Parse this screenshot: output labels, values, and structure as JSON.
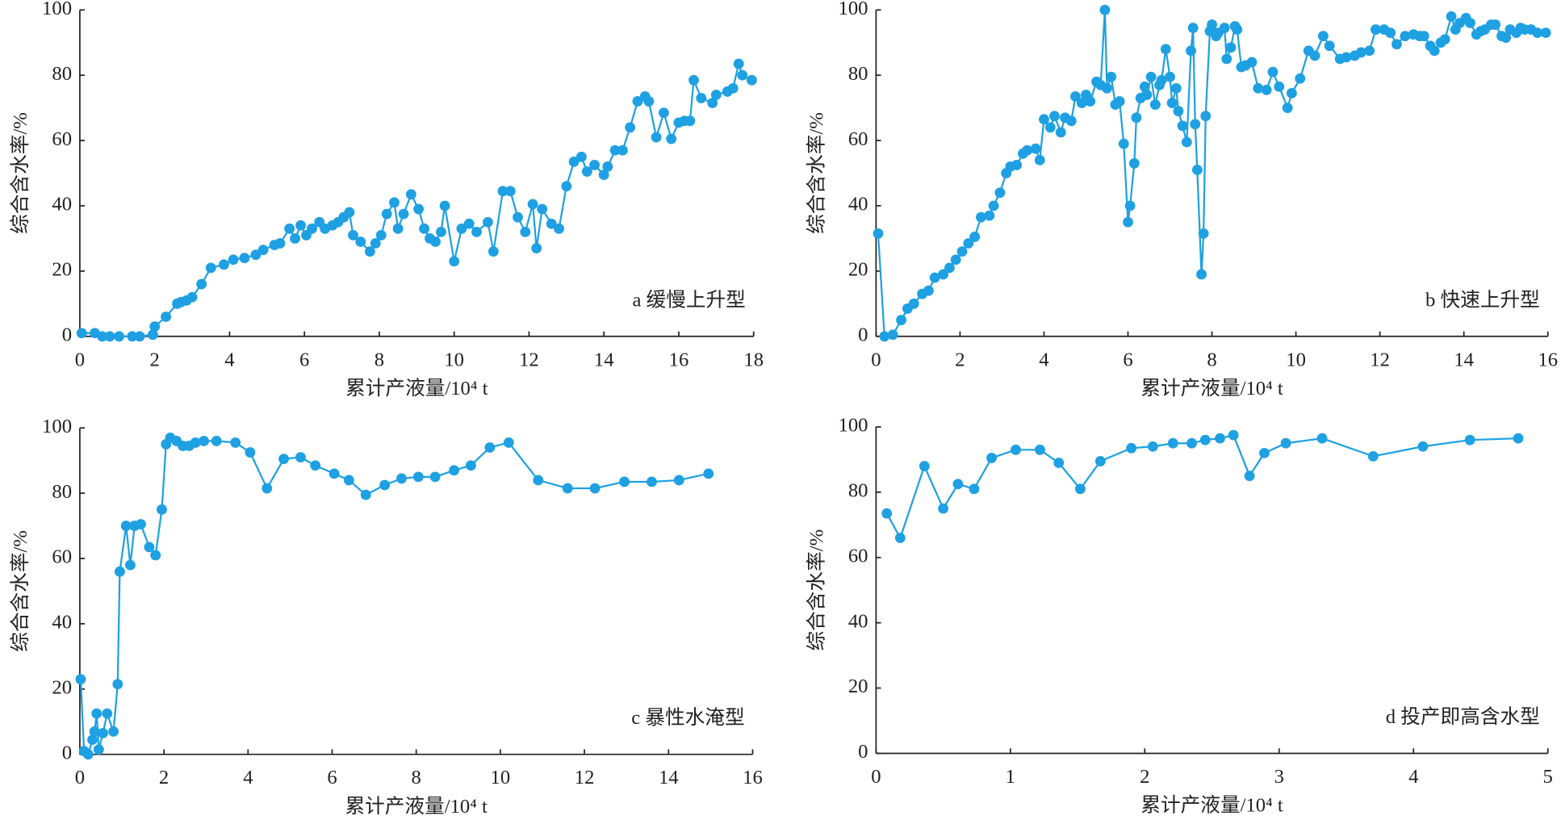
{
  "chart_data": [
    {
      "type": "line",
      "annotation": "a 缓慢上升型",
      "xlabel": "累计产液量/10⁴ t",
      "ylabel": "综合含水率/%",
      "xlim": [
        0,
        18
      ],
      "ylim": [
        0,
        100
      ],
      "xticks": [
        0,
        2,
        4,
        6,
        8,
        10,
        12,
        14,
        16,
        18
      ],
      "yticks": [
        0,
        20,
        40,
        60,
        80,
        100
      ],
      "color": "#1ea0e2",
      "x": [
        0.05,
        0.4,
        0.6,
        0.8,
        1.05,
        1.4,
        1.6,
        1.95,
        2.0,
        2.3,
        2.6,
        2.7,
        2.85,
        3.0,
        3.25,
        3.5,
        3.85,
        4.1,
        4.4,
        4.7,
        4.9,
        5.2,
        5.35,
        5.6,
        5.75,
        5.9,
        6.05,
        6.2,
        6.4,
        6.55,
        6.75,
        6.9,
        7.05,
        7.2,
        7.3,
        7.5,
        7.75,
        7.9,
        8.05,
        8.2,
        8.4,
        8.5,
        8.65,
        8.85,
        9.05,
        9.2,
        9.35,
        9.5,
        9.65,
        9.75,
        10.0,
        10.2,
        10.4,
        10.6,
        10.9,
        11.05,
        11.3,
        11.5,
        11.7,
        11.9,
        12.1,
        12.2,
        12.35,
        12.6,
        12.8,
        13.0,
        13.2,
        13.4,
        13.55,
        13.75,
        14.0,
        14.1,
        14.3,
        14.5,
        14.7,
        14.9,
        15.1,
        15.2,
        15.4,
        15.6,
        15.8,
        16.0,
        16.15,
        16.3,
        16.4,
        16.6,
        16.9,
        17.0,
        17.3,
        17.45,
        17.6,
        17.7,
        17.95
      ],
      "values": [
        1,
        1,
        0,
        0,
        0,
        0,
        0,
        0.5,
        3,
        6,
        10,
        10.5,
        11,
        12,
        16,
        21,
        22,
        23.5,
        24,
        25,
        26.5,
        28,
        28.5,
        33,
        30,
        34,
        31,
        33,
        35,
        33,
        34,
        35,
        36.5,
        38,
        31,
        29,
        26,
        28.5,
        31,
        37.5,
        41,
        33,
        37.5,
        43.5,
        39,
        33,
        30,
        29,
        32,
        40,
        23,
        33,
        34.5,
        32,
        35,
        26,
        44.5,
        44.5,
        36.5,
        32,
        40.5,
        27,
        39,
        34.5,
        33,
        46,
        53.5,
        55,
        50.5,
        52.5,
        49.5,
        52,
        57,
        57,
        64,
        72,
        73.5,
        72,
        61,
        68.5,
        60.5,
        65.5,
        66,
        66,
        78.5,
        73,
        71.5,
        74,
        75,
        76,
        83.5,
        80,
        78.5
      ]
    },
    {
      "type": "line",
      "annotation": "b 快速上升型",
      "xlabel": "累计产液量/10⁴ t",
      "ylabel": "综合含水率/%",
      "xlim": [
        0,
        16
      ],
      "ylim": [
        0,
        100
      ],
      "xticks": [
        0,
        2,
        4,
        6,
        8,
        10,
        12,
        14,
        16
      ],
      "yticks": [
        0,
        20,
        40,
        60,
        80,
        100
      ],
      "color": "#1ea0e2",
      "x": [
        0.05,
        0.2,
        0.4,
        0.6,
        0.75,
        0.9,
        1.1,
        1.25,
        1.4,
        1.6,
        1.75,
        1.9,
        2.05,
        2.2,
        2.35,
        2.5,
        2.7,
        2.8,
        2.95,
        3.1,
        3.2,
        3.35,
        3.5,
        3.6,
        3.8,
        3.9,
        4.0,
        4.15,
        4.25,
        4.4,
        4.5,
        4.65,
        4.75,
        4.9,
        5.0,
        5.1,
        5.25,
        5.35,
        5.45,
        5.5,
        5.6,
        5.7,
        5.8,
        5.9,
        6.0,
        6.05,
        6.15,
        6.2,
        6.3,
        6.4,
        6.45,
        6.55,
        6.65,
        6.75,
        6.8,
        6.9,
        7.0,
        7.05,
        7.15,
        7.2,
        7.3,
        7.4,
        7.5,
        7.55,
        7.6,
        7.65,
        7.75,
        7.8,
        7.85,
        7.95,
        8.0,
        8.1,
        8.15,
        8.3,
        8.35,
        8.45,
        8.55,
        8.6,
        8.7,
        8.8,
        8.95,
        9.1,
        9.3,
        9.45,
        9.6,
        9.8,
        9.9,
        10.1,
        10.3,
        10.45,
        10.65,
        10.8,
        11.05,
        11.2,
        11.4,
        11.55,
        11.75,
        11.9,
        12.1,
        12.25,
        12.4,
        12.6,
        12.8,
        12.95,
        13.05,
        13.2,
        13.3,
        13.45,
        13.55,
        13.7,
        13.8,
        13.9,
        14.05,
        14.15,
        14.3,
        14.4,
        14.5,
        14.65,
        14.75,
        14.9,
        15.0,
        15.1,
        15.25,
        15.35,
        15.45,
        15.6,
        15.75,
        15.95
      ],
      "values": [
        31.5,
        0,
        0.5,
        5,
        8.5,
        10,
        13,
        14,
        18,
        19,
        21,
        23.5,
        26,
        28.5,
        30.5,
        36.5,
        37,
        40,
        44,
        50,
        52,
        52.5,
        56,
        57,
        57.5,
        54,
        66.5,
        64,
        67.5,
        62.5,
        67,
        66,
        73.5,
        71.5,
        74,
        72,
        78,
        77,
        100,
        76,
        79.5,
        71,
        72,
        59,
        35,
        40,
        53,
        67,
        73,
        76.5,
        74,
        79.5,
        71,
        77,
        78.5,
        88,
        79.5,
        71.5,
        76,
        69,
        64.5,
        59.5,
        87.5,
        94.5,
        65,
        51,
        19,
        31.5,
        67.5,
        93.5,
        95.5,
        92,
        93,
        94.5,
        85,
        88.5,
        95,
        94,
        82.5,
        83,
        84,
        76,
        75.5,
        81,
        76.5,
        70,
        74.5,
        79,
        87.5,
        86,
        92,
        89,
        85,
        85.5,
        86,
        87,
        87.5,
        94,
        94,
        93,
        89.5,
        92,
        92.5,
        92,
        92,
        89,
        87.5,
        90,
        91,
        98,
        94,
        96,
        97.5,
        96,
        92.5,
        93.5,
        94,
        95.5,
        95.5,
        92,
        91.5,
        94,
        93,
        94.5,
        94,
        94,
        93,
        93
      ]
    },
    {
      "type": "line",
      "annotation": "c 暴性水淹型",
      "xlabel": "累计产液量/10⁴ t",
      "ylabel": "综合含水率/%",
      "xlim": [
        0,
        16
      ],
      "ylim": [
        0,
        100
      ],
      "xticks": [
        0,
        2,
        4,
        6,
        8,
        10,
        12,
        14,
        16
      ],
      "yticks": [
        0,
        20,
        40,
        60,
        80,
        100
      ],
      "color": "#1ea0e2",
      "x": [
        0.02,
        0.1,
        0.2,
        0.3,
        0.35,
        0.4,
        0.45,
        0.55,
        0.65,
        0.8,
        0.9,
        0.95,
        1.1,
        1.2,
        1.3,
        1.45,
        1.65,
        1.8,
        1.95,
        2.05,
        2.15,
        2.3,
        2.45,
        2.6,
        2.75,
        2.95,
        3.25,
        3.7,
        4.05,
        4.45,
        4.85,
        5.25,
        5.6,
        6.05,
        6.4,
        6.8,
        7.25,
        7.65,
        8.05,
        8.45,
        8.9,
        9.3,
        9.75,
        10.2,
        10.9,
        11.6,
        12.25,
        12.95,
        13.6,
        14.25,
        14.95
      ],
      "values": [
        23,
        1,
        0,
        4.5,
        7,
        12.5,
        1.5,
        6.5,
        12.5,
        7,
        21.5,
        56,
        70,
        58,
        70,
        70.5,
        63.5,
        61,
        75,
        95,
        97,
        96,
        94.5,
        94.5,
        95.5,
        96,
        96,
        95.5,
        92.5,
        81.5,
        90.5,
        91,
        88.5,
        86,
        84,
        79.5,
        82.5,
        84.5,
        85,
        85,
        87,
        88.5,
        94,
        95.5,
        84,
        81.5,
        81.5,
        83.5,
        83.5,
        84,
        86
      ]
    },
    {
      "type": "line",
      "annotation": "d 投产即高含水型",
      "xlabel": "累计产液量/10⁴ t",
      "ylabel": "综合含水率/%",
      "xlim": [
        0,
        5
      ],
      "ylim": [
        0,
        100
      ],
      "xticks": [
        0,
        1,
        2,
        3,
        4,
        5
      ],
      "yticks": [
        0,
        20,
        40,
        60,
        80,
        100
      ],
      "color": "#1ea0e2",
      "x": [
        0.08,
        0.18,
        0.36,
        0.5,
        0.61,
        0.73,
        0.86,
        1.04,
        1.22,
        1.36,
        1.52,
        1.67,
        1.9,
        2.06,
        2.21,
        2.35,
        2.45,
        2.56,
        2.66,
        2.78,
        2.89,
        3.05,
        3.32,
        3.7,
        4.07,
        4.42,
        4.78
      ],
      "values": [
        73.5,
        66,
        88,
        75,
        82.5,
        81,
        90.5,
        93,
        93,
        89,
        81,
        89.5,
        93.5,
        94,
        95,
        95,
        96,
        96.5,
        97.5,
        85,
        92,
        95,
        96.5,
        91,
        94,
        96,
        96.5
      ]
    }
  ]
}
